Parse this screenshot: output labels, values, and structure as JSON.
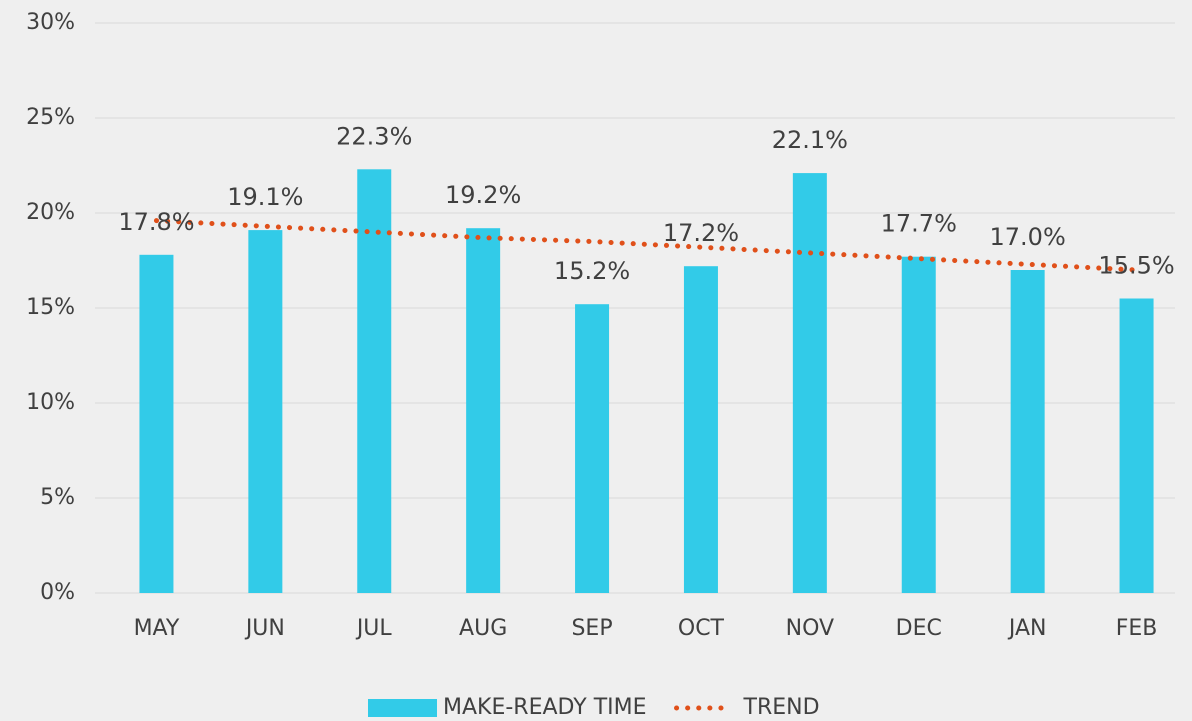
{
  "chart_data": {
    "type": "bar",
    "categories": [
      "MAY",
      "JUN",
      "JUL",
      "AUG",
      "SEP",
      "OCT",
      "NOV",
      "DEC",
      "JAN",
      "FEB"
    ],
    "series": [
      {
        "name": "MAKE-READY TIME",
        "type": "bar",
        "color": "#32cbe8",
        "values": [
          17.8,
          19.1,
          22.3,
          19.2,
          15.2,
          17.2,
          22.1,
          17.7,
          17.0,
          15.5
        ],
        "value_labels": [
          "17.8%",
          "19.1%",
          "22.3%",
          "19.2%",
          "15.2%",
          "17.2%",
          "22.1%",
          "17.7%",
          "17.0%",
          "15.5%"
        ]
      },
      {
        "name": "TREND",
        "type": "line",
        "style": "dotted",
        "color": "#e0501a",
        "values": [
          19.6,
          19.3,
          19.0,
          18.7,
          18.5,
          18.2,
          17.9,
          17.6,
          17.3,
          17.0
        ]
      }
    ],
    "ylim": [
      0,
      30
    ],
    "yticks": [
      {
        "value": 0,
        "label": "0%"
      },
      {
        "value": 5,
        "label": "5%"
      },
      {
        "value": 10,
        "label": "10%"
      },
      {
        "value": 15,
        "label": "15%"
      },
      {
        "value": 20,
        "label": "20%"
      },
      {
        "value": 25,
        "label": "25%"
      },
      {
        "value": 30,
        "label": "30%"
      }
    ],
    "grid": true,
    "legend": "bottom"
  }
}
